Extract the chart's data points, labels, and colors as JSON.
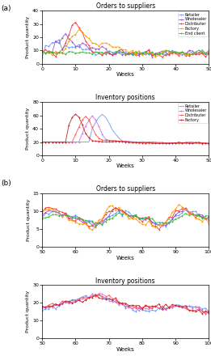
{
  "fig_width": 2.61,
  "fig_height": 4.4,
  "dpi": 100,
  "panel_a_label": "(a)",
  "panel_b_label": "(b)",
  "top_title1": "Orders to suppliers",
  "bottom_title1": "Inventory positions",
  "top_title2": "Orders to suppliers",
  "bottom_title2": "Inventory positions",
  "xlabel": "Weeks",
  "ylabel": "Product quantity",
  "legend1_orders": [
    "Retailer",
    "Wholesaler",
    "Distributer",
    "Factory",
    "End client"
  ],
  "legend1_inventory": [
    "Retailer",
    "Wholesaler",
    "Distributer",
    "Factory"
  ],
  "orders_colors": [
    "#6699ff",
    "#9955cc",
    "#ff3333",
    "#ff9900",
    "#33bb33"
  ],
  "inventory_colors": [
    "#6699ff",
    "#cc77dd",
    "#ff5555",
    "#cc2222"
  ],
  "xlim1": [
    0,
    50
  ],
  "ylim1_orders": [
    0,
    40
  ],
  "ylim1_inventory": [
    0,
    80
  ],
  "xticks1": [
    0,
    10,
    20,
    30,
    40,
    50
  ],
  "yticks1_orders": [
    0,
    10,
    20,
    30,
    40
  ],
  "yticks1_inventory": [
    0,
    20,
    40,
    60,
    80
  ],
  "xlim2": [
    50,
    100
  ],
  "ylim2_orders": [
    0,
    15
  ],
  "ylim2_inventory": [
    0,
    30
  ],
  "xticks2": [
    50,
    60,
    70,
    80,
    90,
    100
  ],
  "yticks2_orders": [
    0,
    5,
    10,
    15
  ],
  "yticks2_inventory": [
    0,
    10,
    20,
    30
  ]
}
